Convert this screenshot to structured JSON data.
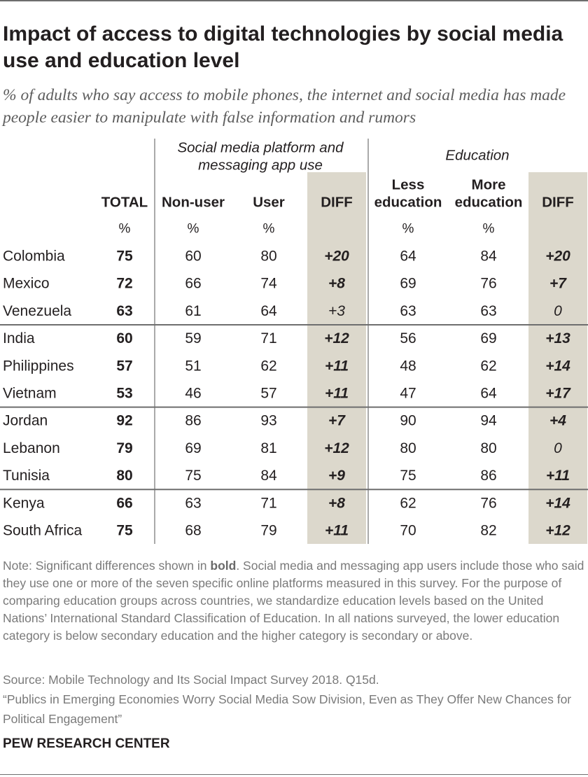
{
  "title": "Impact of access to digital technologies by social media use and education level",
  "subtitle": "% of adults who say access to mobile phones, the internet and social media has made people easier to manipulate with false information and rumors",
  "note_prefix": "Note: Significant differences shown in ",
  "note_bold": "bold",
  "note_rest": ". Social media and messaging app users include those who said they use one or more of the seven specific online platforms measured in this survey. For the purpose of comparing education groups across countries, we standardize education levels based on the United Nations’ International Standard Classification of Education. In all nations surveyed, the lower education category is below secondary education and the higher category is secondary or above.",
  "source": "Source: Mobile Technology and Its Social Impact Survey 2018. Q15d.",
  "report": "“Publics in Emerging Economies Worry Social Media Sow Division, Even as They Offer New Chances for Political Engagement”",
  "brand": "PEW RESEARCH CENTER",
  "colors": {
    "diff_band": "#dcd8cc",
    "text": "#231f20",
    "rule": "#6e6e6e",
    "light_rule": "#9a9a9a"
  },
  "chart_data": {
    "type": "table",
    "groups": [
      {
        "label": [
          "Social media platform and",
          "messaging app use"
        ]
      },
      {
        "label": [
          "Education"
        ]
      }
    ],
    "columns": [
      {
        "key": "total",
        "label": [
          "TOTAL"
        ],
        "unit": "%",
        "bold": true
      },
      {
        "key": "nonuser",
        "label": [
          "Non-user"
        ],
        "unit": "%"
      },
      {
        "key": "user",
        "label": [
          "User"
        ],
        "unit": "%"
      },
      {
        "key": "diff_social",
        "label": [
          "DIFF"
        ],
        "unit": ""
      },
      {
        "key": "less_ed",
        "label": [
          "Less",
          "education"
        ],
        "unit": "%"
      },
      {
        "key": "more_ed",
        "label": [
          "More",
          "education"
        ],
        "unit": "%"
      },
      {
        "key": "diff_ed",
        "label": [
          "DIFF"
        ],
        "unit": ""
      }
    ],
    "rows": [
      {
        "country": "Colombia",
        "values": [
          "75",
          "60",
          "80",
          "+20",
          "64",
          "84",
          "+20"
        ],
        "sig": [
          true,
          true
        ]
      },
      {
        "country": "Mexico",
        "values": [
          "72",
          "66",
          "74",
          "+8",
          "69",
          "76",
          "+7"
        ],
        "sig": [
          true,
          true
        ]
      },
      {
        "country": "Venezuela",
        "values": [
          "63",
          "61",
          "64",
          "+3",
          "63",
          "63",
          "0"
        ],
        "sig": [
          false,
          false
        ]
      },
      {
        "country": "India",
        "values": [
          "60",
          "59",
          "71",
          "+12",
          "56",
          "69",
          "+13"
        ],
        "sig": [
          true,
          true
        ]
      },
      {
        "country": "Philippines",
        "values": [
          "57",
          "51",
          "62",
          "+11",
          "48",
          "62",
          "+14"
        ],
        "sig": [
          true,
          true
        ]
      },
      {
        "country": "Vietnam",
        "values": [
          "53",
          "46",
          "57",
          "+11",
          "47",
          "64",
          "+17"
        ],
        "sig": [
          true,
          true
        ]
      },
      {
        "country": "Jordan",
        "values": [
          "92",
          "86",
          "93",
          "+7",
          "90",
          "94",
          "+4"
        ],
        "sig": [
          true,
          true
        ]
      },
      {
        "country": "Lebanon",
        "values": [
          "79",
          "69",
          "81",
          "+12",
          "80",
          "80",
          "0"
        ],
        "sig": [
          true,
          false
        ]
      },
      {
        "country": "Tunisia",
        "values": [
          "80",
          "75",
          "84",
          "+9",
          "75",
          "86",
          "+11"
        ],
        "sig": [
          true,
          true
        ]
      },
      {
        "country": "Kenya",
        "values": [
          "66",
          "63",
          "71",
          "+8",
          "62",
          "76",
          "+14"
        ],
        "sig": [
          true,
          true
        ]
      },
      {
        "country": "South Africa",
        "values": [
          "75",
          "68",
          "79",
          "+11",
          "70",
          "82",
          "+12"
        ],
        "sig": [
          true,
          true
        ]
      }
    ],
    "region_breaks_after": [
      "Venezuela",
      "Vietnam",
      "Tunisia"
    ]
  }
}
